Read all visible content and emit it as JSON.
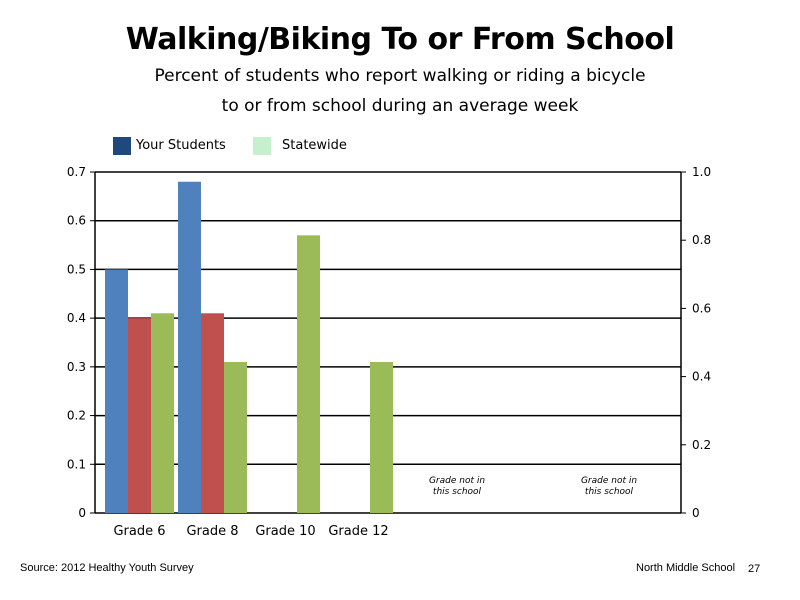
{
  "page": {
    "source": "Source: 2012 Healthy Youth Survey",
    "school": "North Middle School",
    "page_number": "27"
  },
  "chart_data": {
    "type": "bar",
    "title": "Walking/Biking To or From School",
    "subtitle_line1": "Percent of students who report walking or riding a bicycle",
    "subtitle_line2": "to or from school during an average week",
    "xlabel": "",
    "ylabel": "",
    "categories": [
      "Grade 6",
      "Grade 8",
      "Grade 10",
      "Grade 12"
    ],
    "ylim": [
      0,
      0.7
    ],
    "yticks": [
      "0",
      "0.1",
      "0.2",
      "0.3",
      "0.4",
      "0.5",
      "0.6",
      "0.7"
    ],
    "y2lim": [
      0,
      1.0
    ],
    "y2ticks": [
      "0",
      "0.2",
      "0.4",
      "0.6",
      "0.8",
      "1.0"
    ],
    "grid": true,
    "legend": {
      "placement": "top-left",
      "entries": [
        {
          "label": "Your Students",
          "color": "#1F497D"
        },
        {
          "label": "Statewide",
          "color": "#C6EFCE"
        }
      ]
    },
    "series": [
      {
        "color": "#4F81BD",
        "values": [
          0.5,
          0.68,
          null,
          null
        ]
      },
      {
        "color": "#C0504D",
        "values": [
          0.4,
          0.41,
          null,
          null
        ]
      },
      {
        "color": "#9BBB59",
        "values": [
          0.41,
          0.31,
          0.57,
          0.31
        ]
      }
    ],
    "annotations": [
      {
        "line1": "Grade not in",
        "line2": "this school"
      },
      {
        "line1": "Grade not in",
        "line2": "this school"
      }
    ]
  }
}
